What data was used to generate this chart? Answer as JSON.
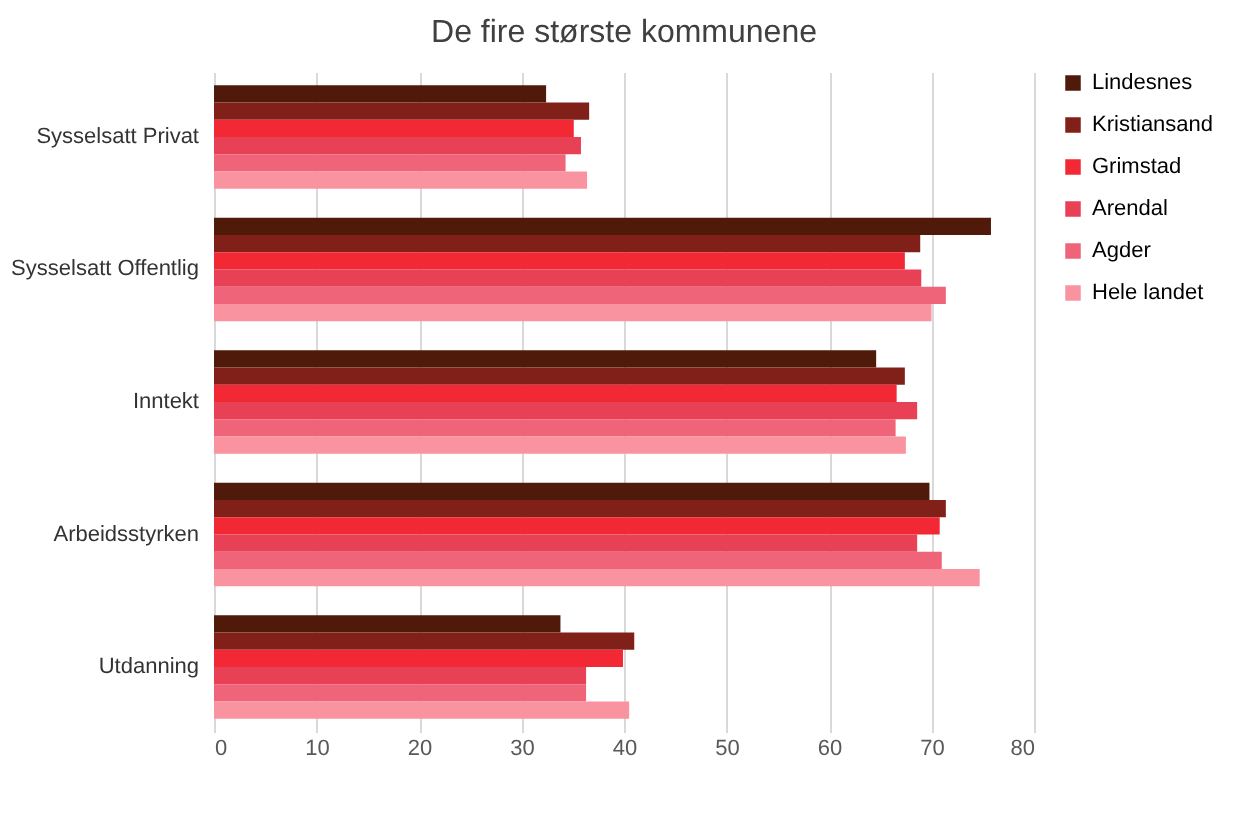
{
  "chart_data": {
    "type": "bar",
    "orientation": "horizontal",
    "title": "De fire største kommunene",
    "categories": [
      "Sysselsatt Privat",
      "Sysselsatt Offentlig",
      "Inntekt",
      "Arbeidsstyrken",
      "Utdanning"
    ],
    "series": [
      {
        "name": "Lindesnes",
        "color": "#4f1a09",
        "values": [
          32.4,
          75.8,
          64.6,
          69.8,
          33.8
        ]
      },
      {
        "name": "Kristiansand",
        "color": "#812018",
        "values": [
          36.6,
          68.9,
          67.4,
          71.4,
          41.0
        ]
      },
      {
        "name": "Grimstad",
        "color": "#f22834",
        "values": [
          35.1,
          67.4,
          66.6,
          70.8,
          39.9
        ]
      },
      {
        "name": "Arendal",
        "color": "#e84055",
        "values": [
          35.8,
          69.0,
          68.6,
          68.6,
          36.3
        ]
      },
      {
        "name": "Agder",
        "color": "#f06479",
        "values": [
          34.3,
          71.4,
          66.5,
          71.0,
          36.3
        ]
      },
      {
        "name": "Hele landet",
        "color": "#f9939f",
        "values": [
          36.4,
          70.0,
          67.5,
          74.7,
          40.5
        ]
      }
    ],
    "xlim": [
      0,
      80
    ],
    "xticks": [
      0,
      10,
      20,
      30,
      40,
      50,
      60,
      70,
      80
    ],
    "grid": "x",
    "legend": "right"
  }
}
